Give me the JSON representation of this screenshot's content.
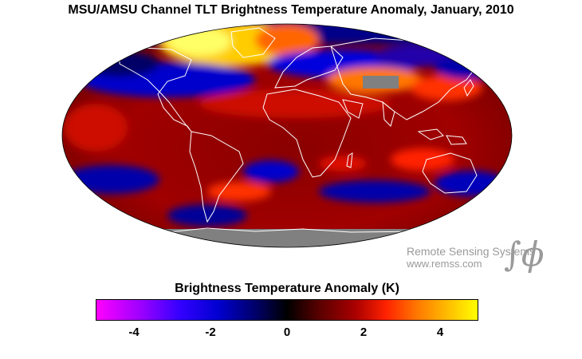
{
  "title": "MSU/AMSU Channel TLT Brightness Temperature Anomaly, January, 2010",
  "credit": {
    "name": "Remote Sensing Systems",
    "url": "www.remss.com",
    "symbol": "∫ϕ"
  },
  "colorbar": {
    "title": "Brightness Temperature Anomaly (K)",
    "min": -5,
    "max": 5,
    "ticks": [
      "-4",
      "-2",
      "0",
      "2",
      "4"
    ],
    "colors": [
      "#ff00ff",
      "#3300ff",
      "#000000",
      "#ff2200",
      "#ffff00"
    ]
  },
  "map": {
    "projection": "Mollweide",
    "missing_data_color": "#808080",
    "coastline_color": "#ffffff"
  }
}
